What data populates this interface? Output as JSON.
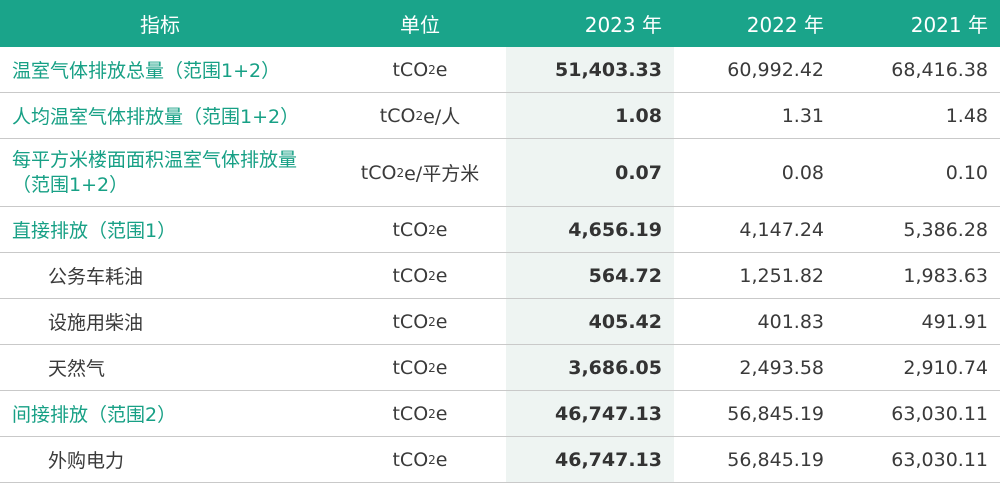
{
  "header": {
    "indicator": "指标",
    "unit": "单位",
    "y2023": "2023 年",
    "y2022": "2022 年",
    "y2021": "2021 年"
  },
  "rows": [
    {
      "indicator": "温室气体排放总量（范围1+2）",
      "unit_pre": "tCO",
      "unit_sub": "2",
      "unit_post": "e",
      "y2023": "51,403.33",
      "y2022": "60,992.42",
      "y2021": "68,416.38"
    },
    {
      "indicator": "人均温室气体排放量（范围1+2）",
      "unit_pre": "tCO",
      "unit_sub": "2",
      "unit_post": "e/人",
      "y2023": "1.08",
      "y2022": "1.31",
      "y2021": "1.48"
    },
    {
      "indicator_line1": "每平方米楼面面积温室气体排放量",
      "indicator_line2": "（范围1+2）",
      "unit_pre": "tCO",
      "unit_sub": "2",
      "unit_post": "e/平方米",
      "y2023": "0.07",
      "y2022": "0.08",
      "y2021": "0.10"
    },
    {
      "indicator": "直接排放（范围1）",
      "unit_pre": "tCO",
      "unit_sub": "2",
      "unit_post": "e",
      "y2023": "4,656.19",
      "y2022": "4,147.24",
      "y2021": "5,386.28"
    },
    {
      "indicator": "公务车耗油",
      "unit_pre": "tCO",
      "unit_sub": "2",
      "unit_post": "e",
      "y2023": "564.72",
      "y2022": "1,251.82",
      "y2021": "1,983.63"
    },
    {
      "indicator": "设施用柴油",
      "unit_pre": "tCO",
      "unit_sub": "2",
      "unit_post": "e",
      "y2023": "405.42",
      "y2022": "401.83",
      "y2021": "491.91"
    },
    {
      "indicator": "天然气",
      "unit_pre": "tCO",
      "unit_sub": "2",
      "unit_post": "e",
      "y2023": "3,686.05",
      "y2022": "2,493.58",
      "y2021": "2,910.74"
    },
    {
      "indicator": "间接排放（范围2）",
      "unit_pre": "tCO",
      "unit_sub": "2",
      "unit_post": "e",
      "y2023": "46,747.13",
      "y2022": "56,845.19",
      "y2021": "63,030.11"
    },
    {
      "indicator": "外购电力",
      "unit_pre": "tCO",
      "unit_sub": "2",
      "unit_post": "e",
      "y2023": "46,747.13",
      "y2022": "56,845.19",
      "y2021": "63,030.11"
    }
  ],
  "colors": {
    "header_bg": "#1aa48a",
    "accent_text": "#17a085",
    "highlight_col": "#eef4f2"
  }
}
